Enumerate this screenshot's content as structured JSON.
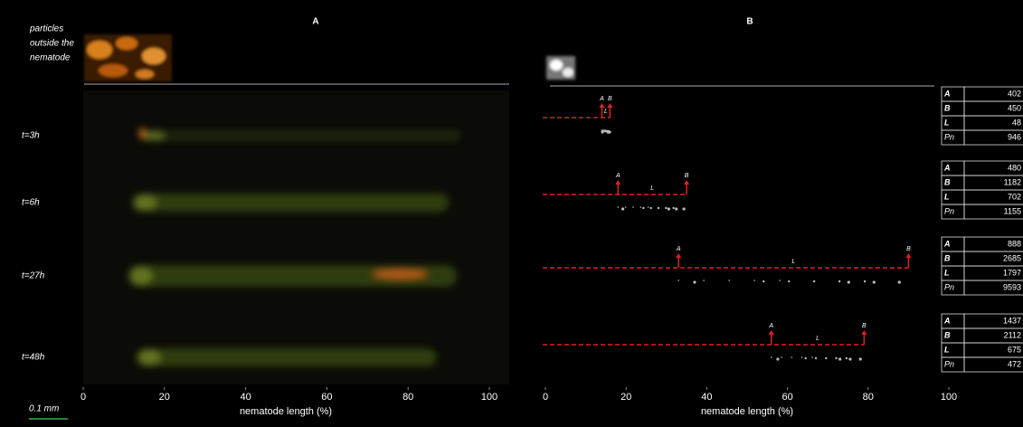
{
  "panel_a": {
    "title": "A",
    "inset_label": [
      "particles",
      "outside the",
      "nematode"
    ],
    "scale_bar": "0.1 mm"
  },
  "panel_b": {
    "title": "B",
    "marker_labels": [
      "A",
      "B",
      "L"
    ],
    "table_keys": [
      "A",
      "B",
      "L",
      "Pn"
    ]
  },
  "axis": {
    "label": "nematode length (%)",
    "ticks": [
      0,
      20,
      40,
      60,
      80,
      100
    ]
  },
  "rows": [
    {
      "time": "t=3h",
      "start": 14,
      "end": 16,
      "values": [
        402,
        450,
        48,
        946
      ]
    },
    {
      "time": "t=6h",
      "start": 18,
      "end": 35,
      "values": [
        480,
        1182,
        702,
        1155
      ]
    },
    {
      "time": "t=27h",
      "start": 33,
      "end": 90,
      "values": [
        888,
        2685,
        1797,
        9593
      ]
    },
    {
      "time": "t=48h",
      "start": 56,
      "end": 79,
      "values": [
        1437,
        2112,
        675,
        472
      ]
    }
  ]
}
